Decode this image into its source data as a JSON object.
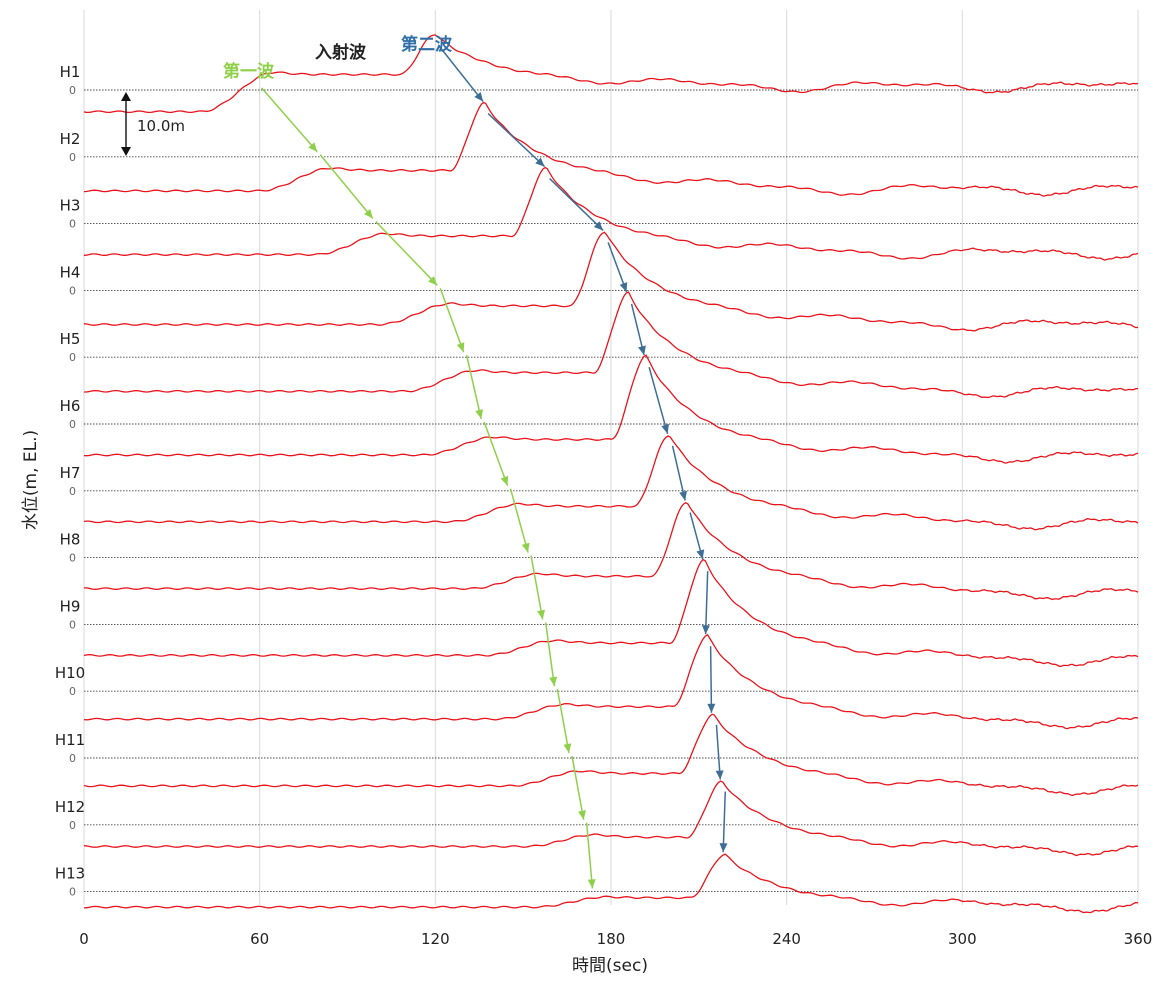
{
  "chart_data": {
    "type": "line",
    "xlabel": "時間(sec)",
    "ylabel": "水位(m, EL.)",
    "xlim": [
      0,
      360
    ],
    "xticks": [
      0,
      60,
      120,
      180,
      240,
      300,
      360
    ],
    "xtick_labels": [
      "0",
      "60",
      "120",
      "180",
      "240",
      "300",
      "360"
    ],
    "gridlines_vertical": true,
    "zero_label": "0",
    "scale_bar_label": "10.0m",
    "scale_bar_m": 10,
    "annotations": {
      "first_wave": "第一波",
      "incident_wave": "入射波",
      "second_wave": "第二波"
    },
    "colors": {
      "trace": "#e8141c",
      "first_wave": "#8fd04a",
      "second_wave": "#3e6e96",
      "grid": "#d9d9d9"
    },
    "series": [
      {
        "name": "H1",
        "t1": 60,
        "t2": 120,
        "a1": 3.3,
        "a2": 9.0,
        "base": 3.5,
        "amp": 6.0
      },
      {
        "name": "H2",
        "t1": 80,
        "t2": 137,
        "a1": 3.3,
        "a2": 8.7,
        "base": 5.5,
        "amp": 3.3
      },
      {
        "name": "H3",
        "t1": 99,
        "t2": 158,
        "a1": 3.3,
        "a2": 9.0,
        "base": 5.0,
        "amp": 3.0
      },
      {
        "name": "H4",
        "t1": 121,
        "t2": 178,
        "a1": 3.3,
        "a2": 9.5,
        "base": 5.5,
        "amp": 3.0
      },
      {
        "name": "H5",
        "t1": 130,
        "t2": 186,
        "a1": 3.3,
        "a2": 10.4,
        "base": 5.5,
        "amp": 3.0
      },
      {
        "name": "H6",
        "t1": 136,
        "t2": 192,
        "a1": 3.3,
        "a2": 11.0,
        "base": 5.0,
        "amp": 2.5
      },
      {
        "name": "H7",
        "t1": 145,
        "t2": 200,
        "a1": 3.3,
        "a2": 9.0,
        "base": 5.0,
        "amp": 2.5
      },
      {
        "name": "H8",
        "t1": 152,
        "t2": 206,
        "a1": 3.3,
        "a2": 9.0,
        "base": 5.0,
        "amp": 2.0
      },
      {
        "name": "H9",
        "t1": 157,
        "t2": 212,
        "a1": 3.3,
        "a2": 10.4,
        "base": 5.0,
        "amp": 2.0
      },
      {
        "name": "H10",
        "t1": 161,
        "t2": 213,
        "a1": 3.3,
        "a2": 9.0,
        "base": 4.5,
        "amp": 2.0
      },
      {
        "name": "H11",
        "t1": 166,
        "t2": 215,
        "a1": 3.3,
        "a2": 7.0,
        "base": 4.5,
        "amp": 2.0
      },
      {
        "name": "H12",
        "t1": 171,
        "t2": 218,
        "a1": 3.3,
        "a2": 7.0,
        "base": 3.5,
        "amp": 1.5
      },
      {
        "name": "H13",
        "t1": 174,
        "t2": 219,
        "a1": 1.3,
        "a2": 6.0,
        "base": 2.5,
        "amp": 1.5
      }
    ]
  }
}
